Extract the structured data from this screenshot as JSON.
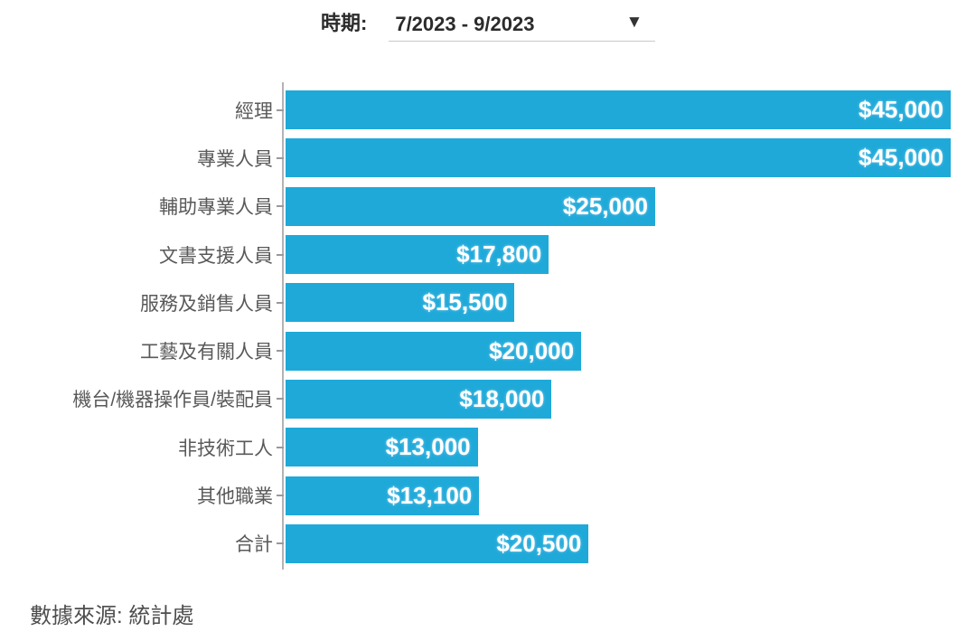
{
  "period_control": {
    "label": "時期:",
    "value": "7/2023 - 9/2023",
    "dropdown_icon": "▼"
  },
  "chart_data": {
    "type": "bar",
    "orientation": "horizontal",
    "title": "",
    "xlabel": "",
    "ylabel": "",
    "xlim": [
      0,
      45000
    ],
    "grid": false,
    "legend": "none",
    "bar_color": "#1FA9D9",
    "value_label_color": "#FFFFFF",
    "category_label_color": "#595959",
    "categories": [
      "經理",
      "專業人員",
      "輔助專業人員",
      "文書支援人員",
      "服務及銷售人員",
      "工藝及有關人員",
      "機台/機器操作員/裝配員",
      "非技術工人",
      "其他職業",
      "合計"
    ],
    "values": [
      45000,
      45000,
      25000,
      17800,
      15500,
      20000,
      18000,
      13000,
      13100,
      20500
    ],
    "value_labels": [
      "$45,000",
      "$45,000",
      "$25,000",
      "$17,800",
      "$15,500",
      "$20,000",
      "$18,000",
      "$13,000",
      "$13,100",
      "$20,500"
    ]
  },
  "footer": {
    "source": "數據來源: 統計處"
  }
}
